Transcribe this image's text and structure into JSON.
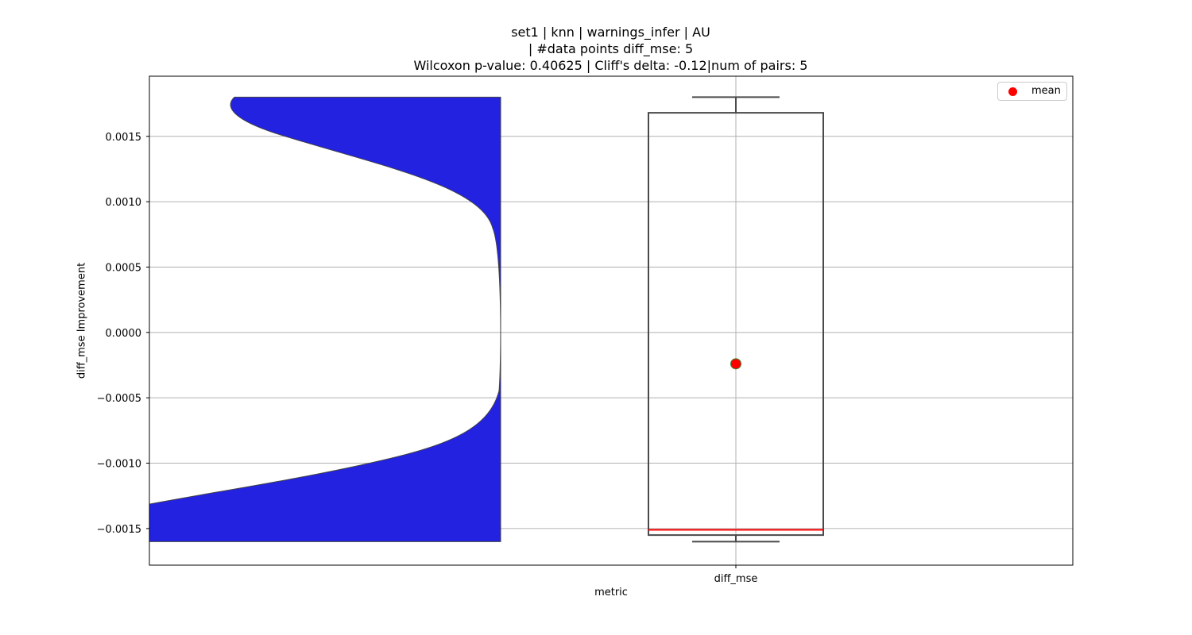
{
  "chart_data": {
    "type": "violin+box",
    "title_lines": [
      "set1 | knn | warnings_infer | AU",
      " | #data points diff_mse: 5",
      "Wilcoxon p-value: 0.40625 | Cliff's delta: -0.12|num of pairs: 5"
    ],
    "xlabel": "metric",
    "ylabel": "diff_mse Improvement",
    "categories": [
      "diff_mse"
    ],
    "ylim": [
      -0.00178,
      0.00196
    ],
    "yticks": [
      -0.0015,
      -0.001,
      -0.0005,
      0.0,
      0.0005,
      0.001,
      0.0015
    ],
    "ytick_labels": [
      "−0.0015",
      "−0.0010",
      "−0.0005",
      "0.0000",
      "0.0005",
      "0.0010",
      "0.0015"
    ],
    "grid": true,
    "legend": {
      "placement": "top-right",
      "entries": [
        "mean"
      ]
    },
    "violin": {
      "color": "#2222e0",
      "ymin": -0.0016,
      "ymax": 0.0018
    },
    "box": {
      "whisker_low": -0.0016,
      "q1": -0.00155,
      "median": -0.00151,
      "q3": 0.00168,
      "whisker_high": 0.0018,
      "mean": -0.00024
    },
    "colors": {
      "mean": "#ff0000",
      "median": "#ff0000",
      "mean_edge": "#3a8a3a",
      "box_edge": "#4a4a4a",
      "violin_fill": "#2222e0"
    }
  }
}
